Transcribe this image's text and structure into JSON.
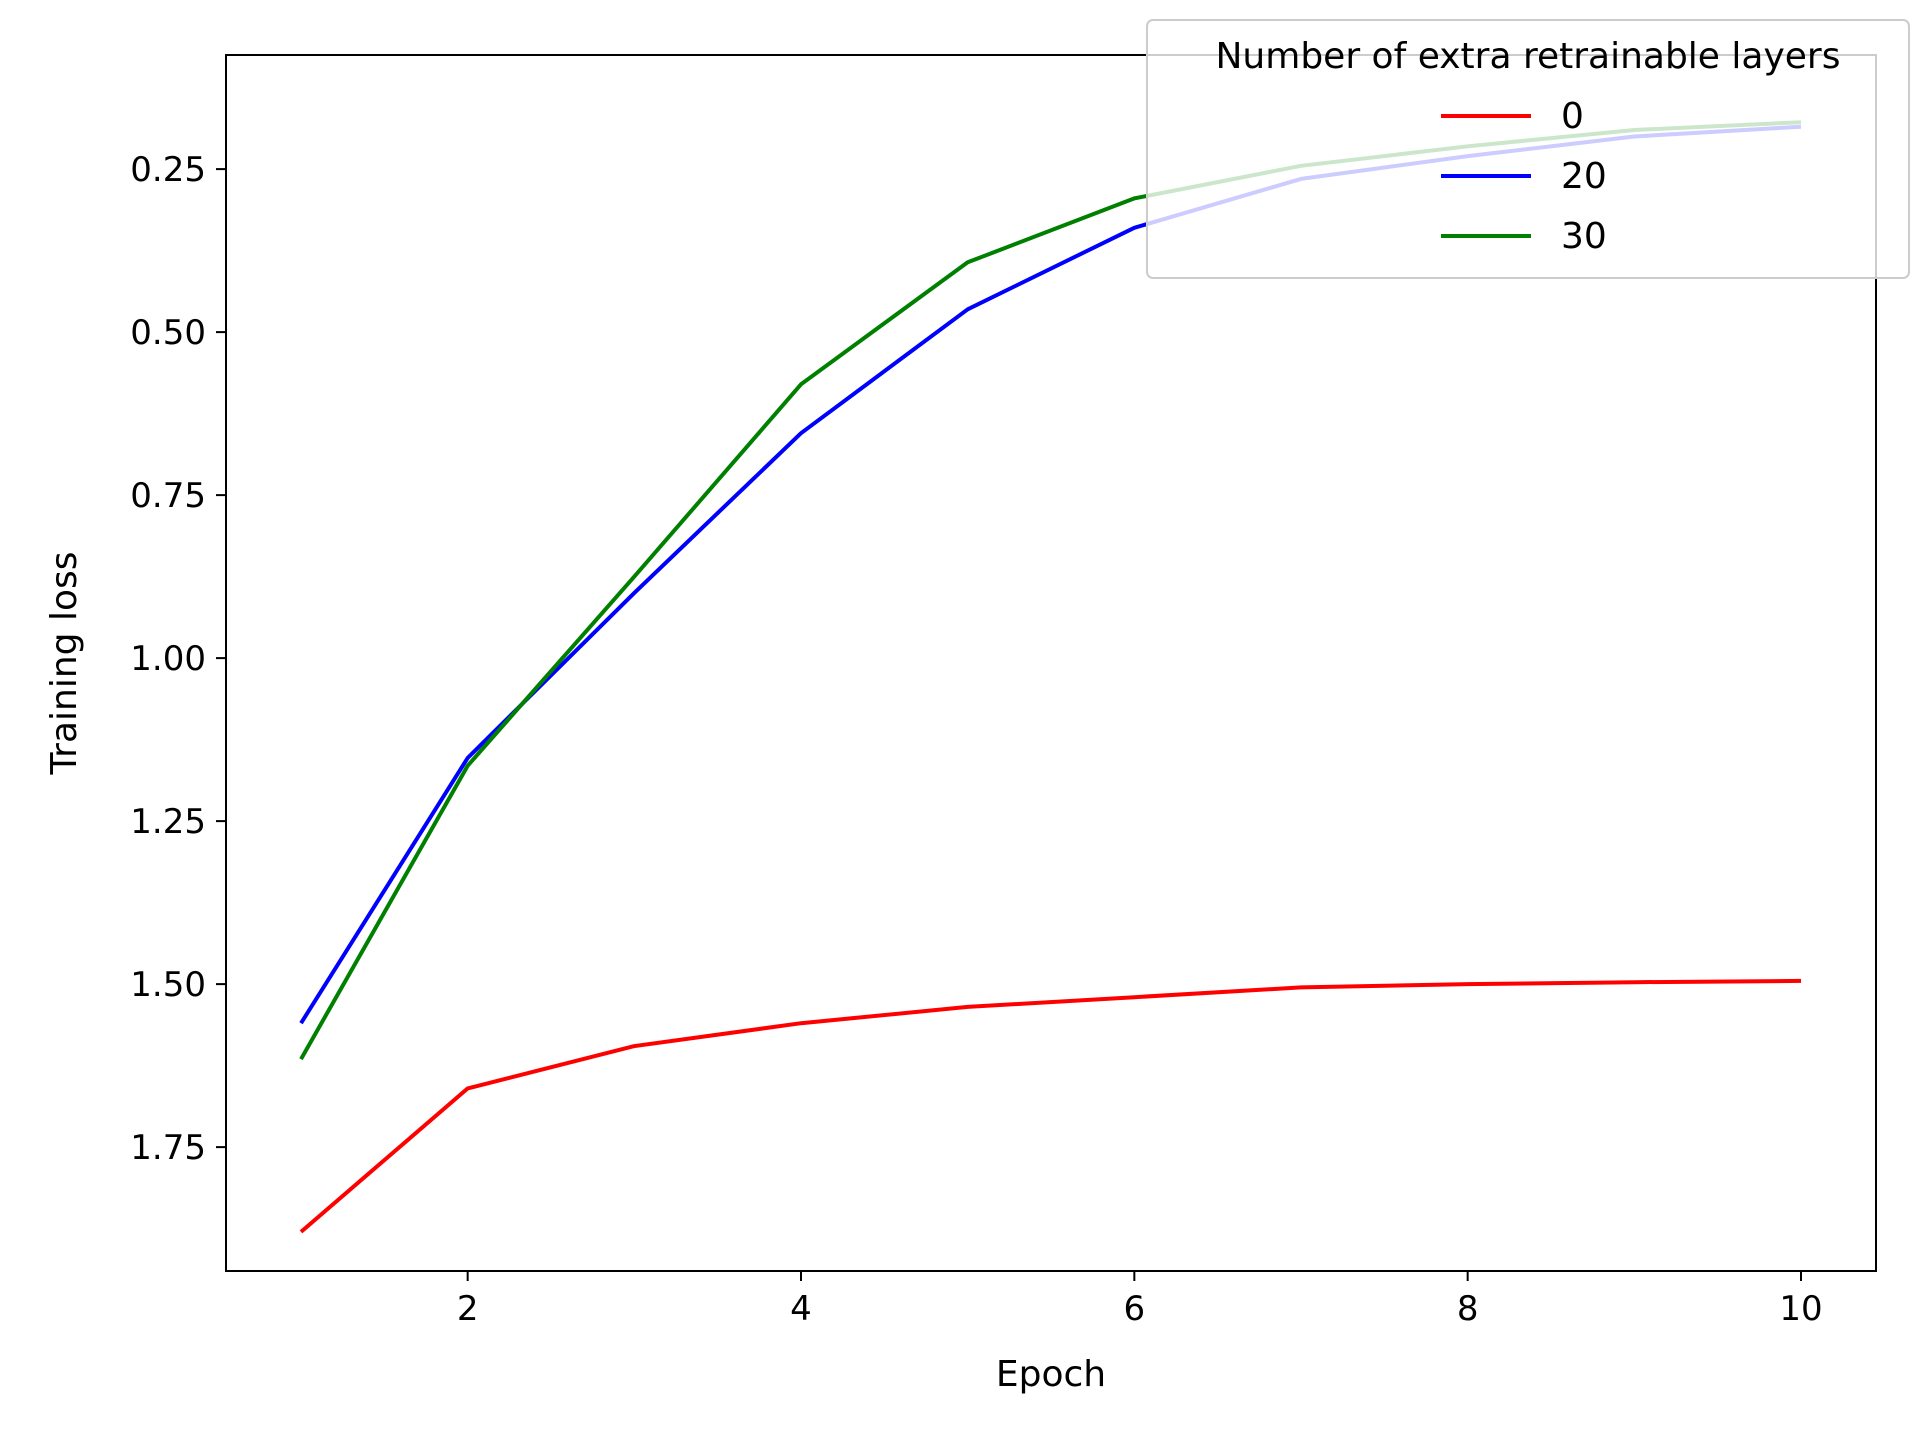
{
  "chart_data": {
    "type": "line",
    "title": "",
    "xlabel": "Epoch",
    "ylabel": "Training loss",
    "xlim": [
      0.55,
      10.45
    ],
    "ylim": [
      1.94,
      0.075
    ],
    "y_inverted": true,
    "grid": false,
    "x": [
      1,
      2,
      3,
      4,
      5,
      6,
      7,
      8,
      9,
      10
    ],
    "xticks": [
      2,
      4,
      6,
      8,
      10
    ],
    "xtick_labels": [
      "2",
      "4",
      "6",
      "8",
      "10"
    ],
    "yticks": [
      0.25,
      0.5,
      0.75,
      1.0,
      1.25,
      1.5,
      1.75
    ],
    "ytick_labels": [
      "0.25",
      "0.50",
      "0.75",
      "1.00",
      "1.25",
      "1.50",
      "1.75"
    ],
    "legend": {
      "title": "Number of extra retrainable layers",
      "position": "top-right"
    },
    "series": [
      {
        "name": "0",
        "color": "#ff0000",
        "values": [
          1.88,
          1.66,
          1.595,
          1.56,
          1.535,
          1.52,
          1.505,
          1.5,
          1.497,
          1.495
        ]
      },
      {
        "name": "20",
        "color": "#0000ff",
        "values": [
          1.56,
          1.153,
          0.9,
          0.655,
          0.465,
          0.34,
          0.265,
          0.23,
          0.2,
          0.185
        ]
      },
      {
        "name": "30",
        "color": "#008000",
        "values": [
          1.615,
          1.165,
          0.875,
          0.58,
          0.393,
          0.295,
          0.245,
          0.215,
          0.19,
          0.178
        ]
      }
    ]
  }
}
